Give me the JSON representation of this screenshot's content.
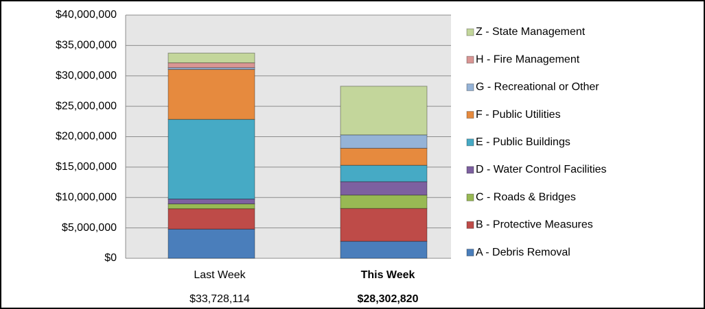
{
  "chart_data": {
    "type": "stacked-bar",
    "categories": [
      "Last Week",
      "This Week"
    ],
    "total_labels": [
      "$33,728,114",
      "$28,302,820"
    ],
    "series": [
      {
        "name": "A - Debris Removal",
        "color": "#4a7ebb",
        "values": [
          4800000,
          2800000
        ]
      },
      {
        "name": "B - Protective Measures",
        "color": "#be4b48",
        "values": [
          3350000,
          5400000
        ]
      },
      {
        "name": "C - Roads & Bridges",
        "color": "#98b954",
        "values": [
          800000,
          2200000
        ]
      },
      {
        "name": "D - Water Control Facilities",
        "color": "#7d60a0",
        "values": [
          800000,
          2200000
        ]
      },
      {
        "name": "E - Public Buildings",
        "color": "#46aac5",
        "values": [
          13100000,
          2700000
        ]
      },
      {
        "name": "F - Public Utilities",
        "color": "#e68a3e",
        "values": [
          8200000,
          2800000
        ]
      },
      {
        "name": "G - Recreational or Other",
        "color": "#95b3d7",
        "values": [
          300000,
          2200000
        ]
      },
      {
        "name": "H - Fire Management",
        "color": "#d99694",
        "values": [
          800000,
          0
        ]
      },
      {
        "name": "Z - State Management",
        "color": "#c3d69b",
        "values": [
          1600000,
          8000000
        ]
      }
    ],
    "ylim": [
      0,
      40000000
    ],
    "yticks": [
      {
        "value": 0,
        "label": "$0"
      },
      {
        "value": 5000000,
        "label": "$5,000,000"
      },
      {
        "value": 10000000,
        "label": "$10,000,000"
      },
      {
        "value": 15000000,
        "label": "$15,000,000"
      },
      {
        "value": 20000000,
        "label": "$20,000,000"
      },
      {
        "value": 25000000,
        "label": "$25,000,000"
      },
      {
        "value": 30000000,
        "label": "$30,000,000"
      },
      {
        "value": 35000000,
        "label": "$35,000,000"
      },
      {
        "value": 40000000,
        "label": "$40,000,000"
      }
    ],
    "grid": true,
    "legend": "right"
  }
}
